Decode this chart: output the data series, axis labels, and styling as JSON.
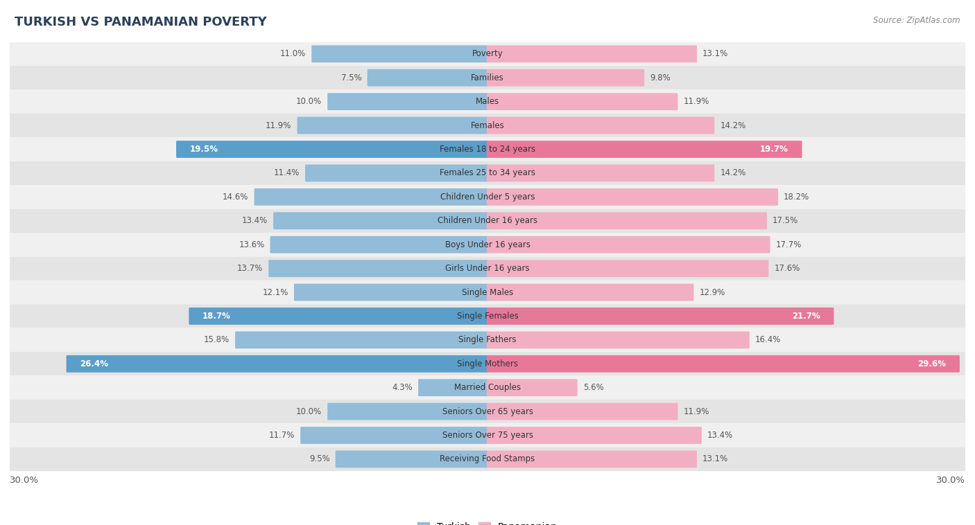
{
  "title": "TURKISH VS PANAMANIAN POVERTY",
  "source": "Source: ZipAtlas.com",
  "categories": [
    "Poverty",
    "Families",
    "Males",
    "Females",
    "Females 18 to 24 years",
    "Females 25 to 34 years",
    "Children Under 5 years",
    "Children Under 16 years",
    "Boys Under 16 years",
    "Girls Under 16 years",
    "Single Males",
    "Single Females",
    "Single Fathers",
    "Single Mothers",
    "Married Couples",
    "Seniors Over 65 years",
    "Seniors Over 75 years",
    "Receiving Food Stamps"
  ],
  "turkish": [
    11.0,
    7.5,
    10.0,
    11.9,
    19.5,
    11.4,
    14.6,
    13.4,
    13.6,
    13.7,
    12.1,
    18.7,
    15.8,
    26.4,
    4.3,
    10.0,
    11.7,
    9.5
  ],
  "panamanian": [
    13.1,
    9.8,
    11.9,
    14.2,
    19.7,
    14.2,
    18.2,
    17.5,
    17.7,
    17.6,
    12.9,
    21.7,
    16.4,
    29.6,
    5.6,
    11.9,
    13.4,
    13.1
  ],
  "turkish_color": "#92bcd8",
  "panamanian_color": "#f2afc3",
  "highlight_turkish_color": "#5b9ec9",
  "highlight_panamanian_color": "#e8789a",
  "row_bg_light": "#f0f0f0",
  "row_bg_dark": "#e4e4e4",
  "background_color": "#ffffff",
  "max_val": 30.0,
  "legend_turkish": "Turkish",
  "legend_panamanian": "Panamanian",
  "highlight_rows": [
    4,
    11,
    13
  ]
}
